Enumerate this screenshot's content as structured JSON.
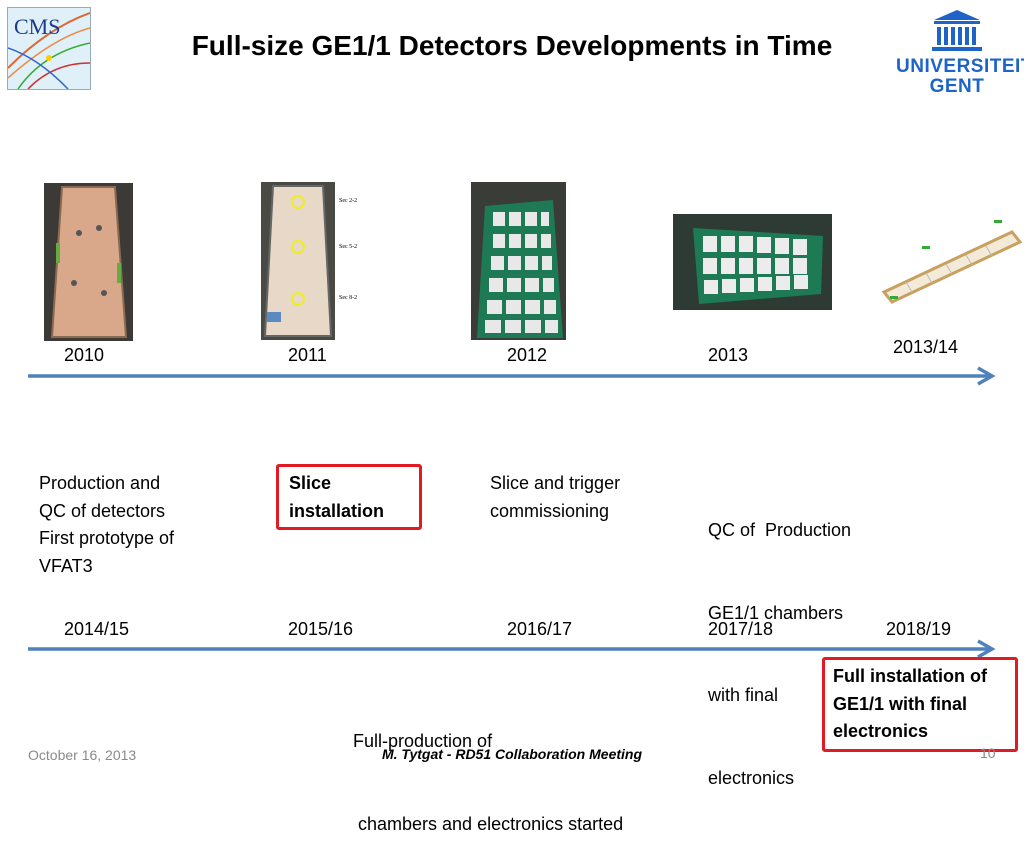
{
  "header": {
    "title": "Full-size GE1/1 Detectors Developments in Time",
    "cms_logo_text": "CMS",
    "ugent_line1": "UNIVERSITEIT",
    "ugent_line2": "GENT"
  },
  "photo_labels": {
    "p2_notes": [
      "Sec 2-2",
      "Sec 5-2",
      "Sec 8-2"
    ]
  },
  "timeline1": {
    "years": [
      "2010",
      "2011",
      "2012",
      "2013",
      "2013/14"
    ]
  },
  "descriptions": {
    "col1": [
      "Production and",
      "QC of detectors",
      "First prototype of",
      "VFAT3"
    ],
    "col2": [
      "Slice",
      "installation"
    ],
    "col3": [
      "Slice and trigger",
      "commissioning"
    ],
    "col4": [
      "QC of  Production",
      "GE1/1 chambers",
      "with final",
      "electronics"
    ]
  },
  "timeline2": {
    "years": [
      "2014/15",
      "2015/16",
      "2016/17",
      "2017/18",
      "2018/19"
    ]
  },
  "bottom": {
    "production": [
      "Full-production of",
      " chambers and electronics started"
    ],
    "final": [
      "Full installation of",
      "GE1/1 with final",
      "electronics"
    ]
  },
  "footer": {
    "date": "October 16, 2013",
    "center": "M. Tytgat - RD51 Collaboration Meeting",
    "page": "10"
  },
  "colors": {
    "arrow": "#4f81bd",
    "highlight_box": "#e01b24",
    "ugent_blue": "#1e64c8"
  }
}
